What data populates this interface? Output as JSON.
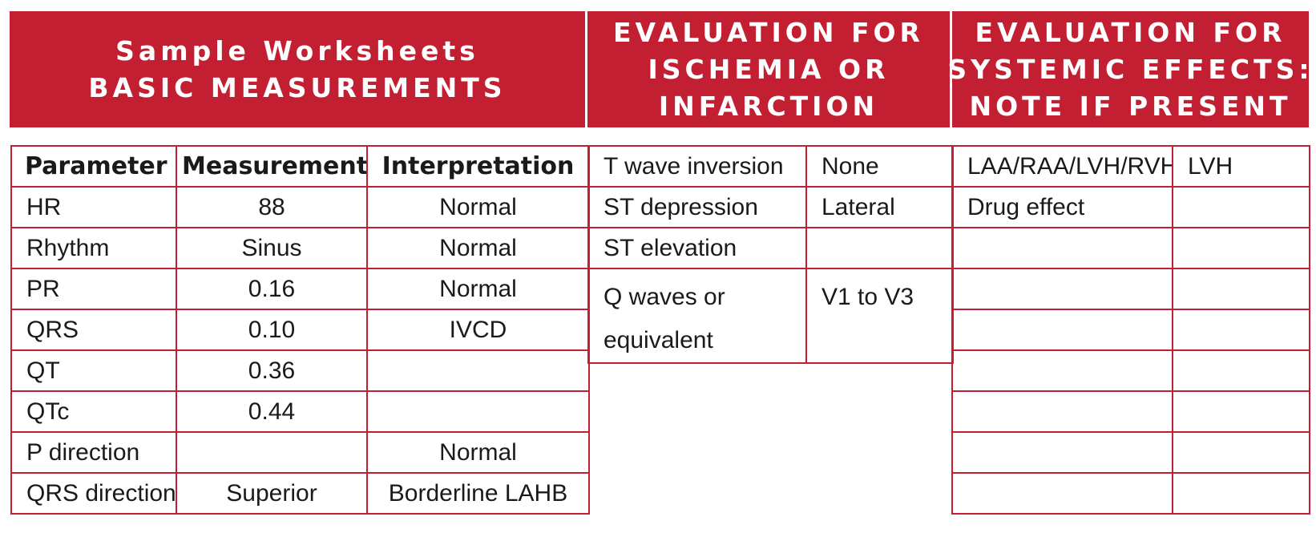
{
  "headers": {
    "basic": {
      "line1": "Sample Worksheets",
      "line2": "BASIC MEASUREMENTS"
    },
    "ischemia": {
      "line1": "EVALUATION FOR",
      "line2": "ISCHEMIA OR",
      "line3": "INFARCTION"
    },
    "systemic": {
      "line1": "EVALUATION FOR",
      "line2": "SYSTEMIC EFFECTS:",
      "line3": "NOTE IF PRESENT"
    }
  },
  "basic": {
    "columns": [
      "Parameter",
      "Measurement",
      "Interpretation"
    ],
    "rows": [
      [
        "HR",
        "88",
        "Normal"
      ],
      [
        "Rhythm",
        "Sinus",
        "Normal"
      ],
      [
        "PR",
        "0.16",
        "Normal"
      ],
      [
        "QRS",
        "0.10",
        "IVCD"
      ],
      [
        "QT",
        "0.36",
        ""
      ],
      [
        "QTc",
        "0.44",
        ""
      ],
      [
        "P direction",
        "",
        "Normal"
      ],
      [
        "QRS direction",
        "Superior",
        "Borderline LAHB"
      ]
    ]
  },
  "ischemia": {
    "rows": [
      [
        "T wave inversion",
        "None"
      ],
      [
        "ST depression",
        "Lateral"
      ],
      [
        "ST elevation",
        ""
      ]
    ],
    "q_waves_line1": "Q waves or",
    "q_waves_line2": "equivalent",
    "q_waves_value": "V1 to V3"
  },
  "systemic": {
    "rows": [
      [
        "LAA/RAA/LVH/RVH",
        "LVH"
      ],
      [
        "Drug effect",
        ""
      ],
      [
        "",
        ""
      ],
      [
        "",
        ""
      ],
      [
        "",
        ""
      ],
      [
        "",
        ""
      ],
      [
        "",
        ""
      ],
      [
        "",
        ""
      ],
      [
        "",
        ""
      ]
    ]
  },
  "colors": {
    "accent": "#c21f32",
    "header_text": "#ffffff"
  }
}
